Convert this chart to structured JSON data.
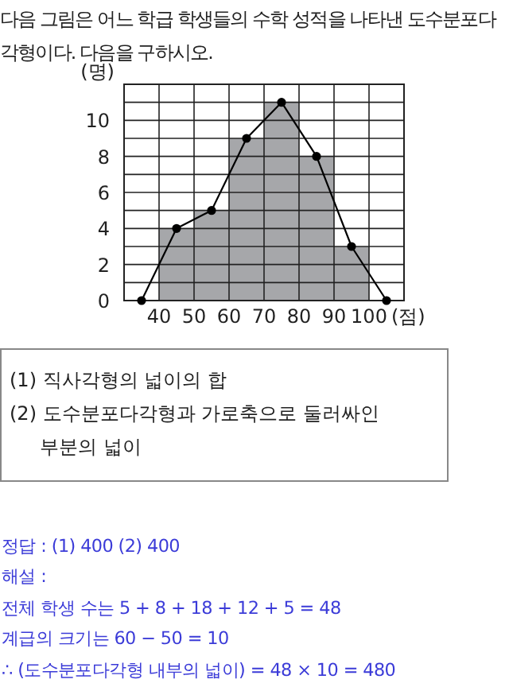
{
  "chart_data": {
    "type": "histogram",
    "title": "다음 그림은 어느 학급 학생들의 수학 성적을 나타낸 도수분포다각형이다. 다음을 구하시오.",
    "xlabel": "(점)",
    "ylabel": "(명)",
    "bins": [
      40,
      50,
      60,
      70,
      80,
      90,
      100
    ],
    "values": [
      4,
      5,
      9,
      11,
      8,
      3
    ],
    "color": "#a6a7aa",
    "series": [
      {
        "type": "line",
        "color": "#000000",
        "x": [
          35,
          45,
          55,
          65,
          75,
          85,
          95,
          105
        ],
        "values": [
          0,
          4,
          5,
          9,
          11,
          8,
          3,
          0
        ]
      }
    ],
    "marker": "circle",
    "line_style": "solid",
    "grid": true,
    "xlim": [
      30,
      110
    ],
    "ylim": [
      0,
      12
    ],
    "xticks": [
      {
        "value": 30,
        "label": null
      },
      40,
      50,
      60,
      70,
      80,
      90,
      100,
      {
        "value": 110,
        "label": null
      }
    ],
    "yticks": [
      0,
      {
        "value": 1,
        "label": null
      },
      2,
      {
        "value": 3,
        "label": null
      },
      4,
      {
        "value": 5,
        "label": null
      },
      6,
      {
        "value": 7,
        "label": null
      },
      8,
      {
        "value": 9,
        "label": null
      },
      10,
      {
        "value": 11,
        "label": null
      },
      {
        "value": 12,
        "label": null
      }
    ],
    "annotations": [
      "(1) 직사각형의 넓이의 합",
      "(2) 도수분포다각형과 가로축으로 둘러싸인",
      "부분의 넓이",
      "정답 : (1) 400  (2) 400",
      "해설 :",
      "전체 학생 수는 5 + 8 + 18 + 12 + 5 = 48",
      "계급의 크기는 60 − 50 = 10",
      "∴ (도수분포다각형 내부의 넓이) = 48 × 10 = 480"
    ]
  }
}
